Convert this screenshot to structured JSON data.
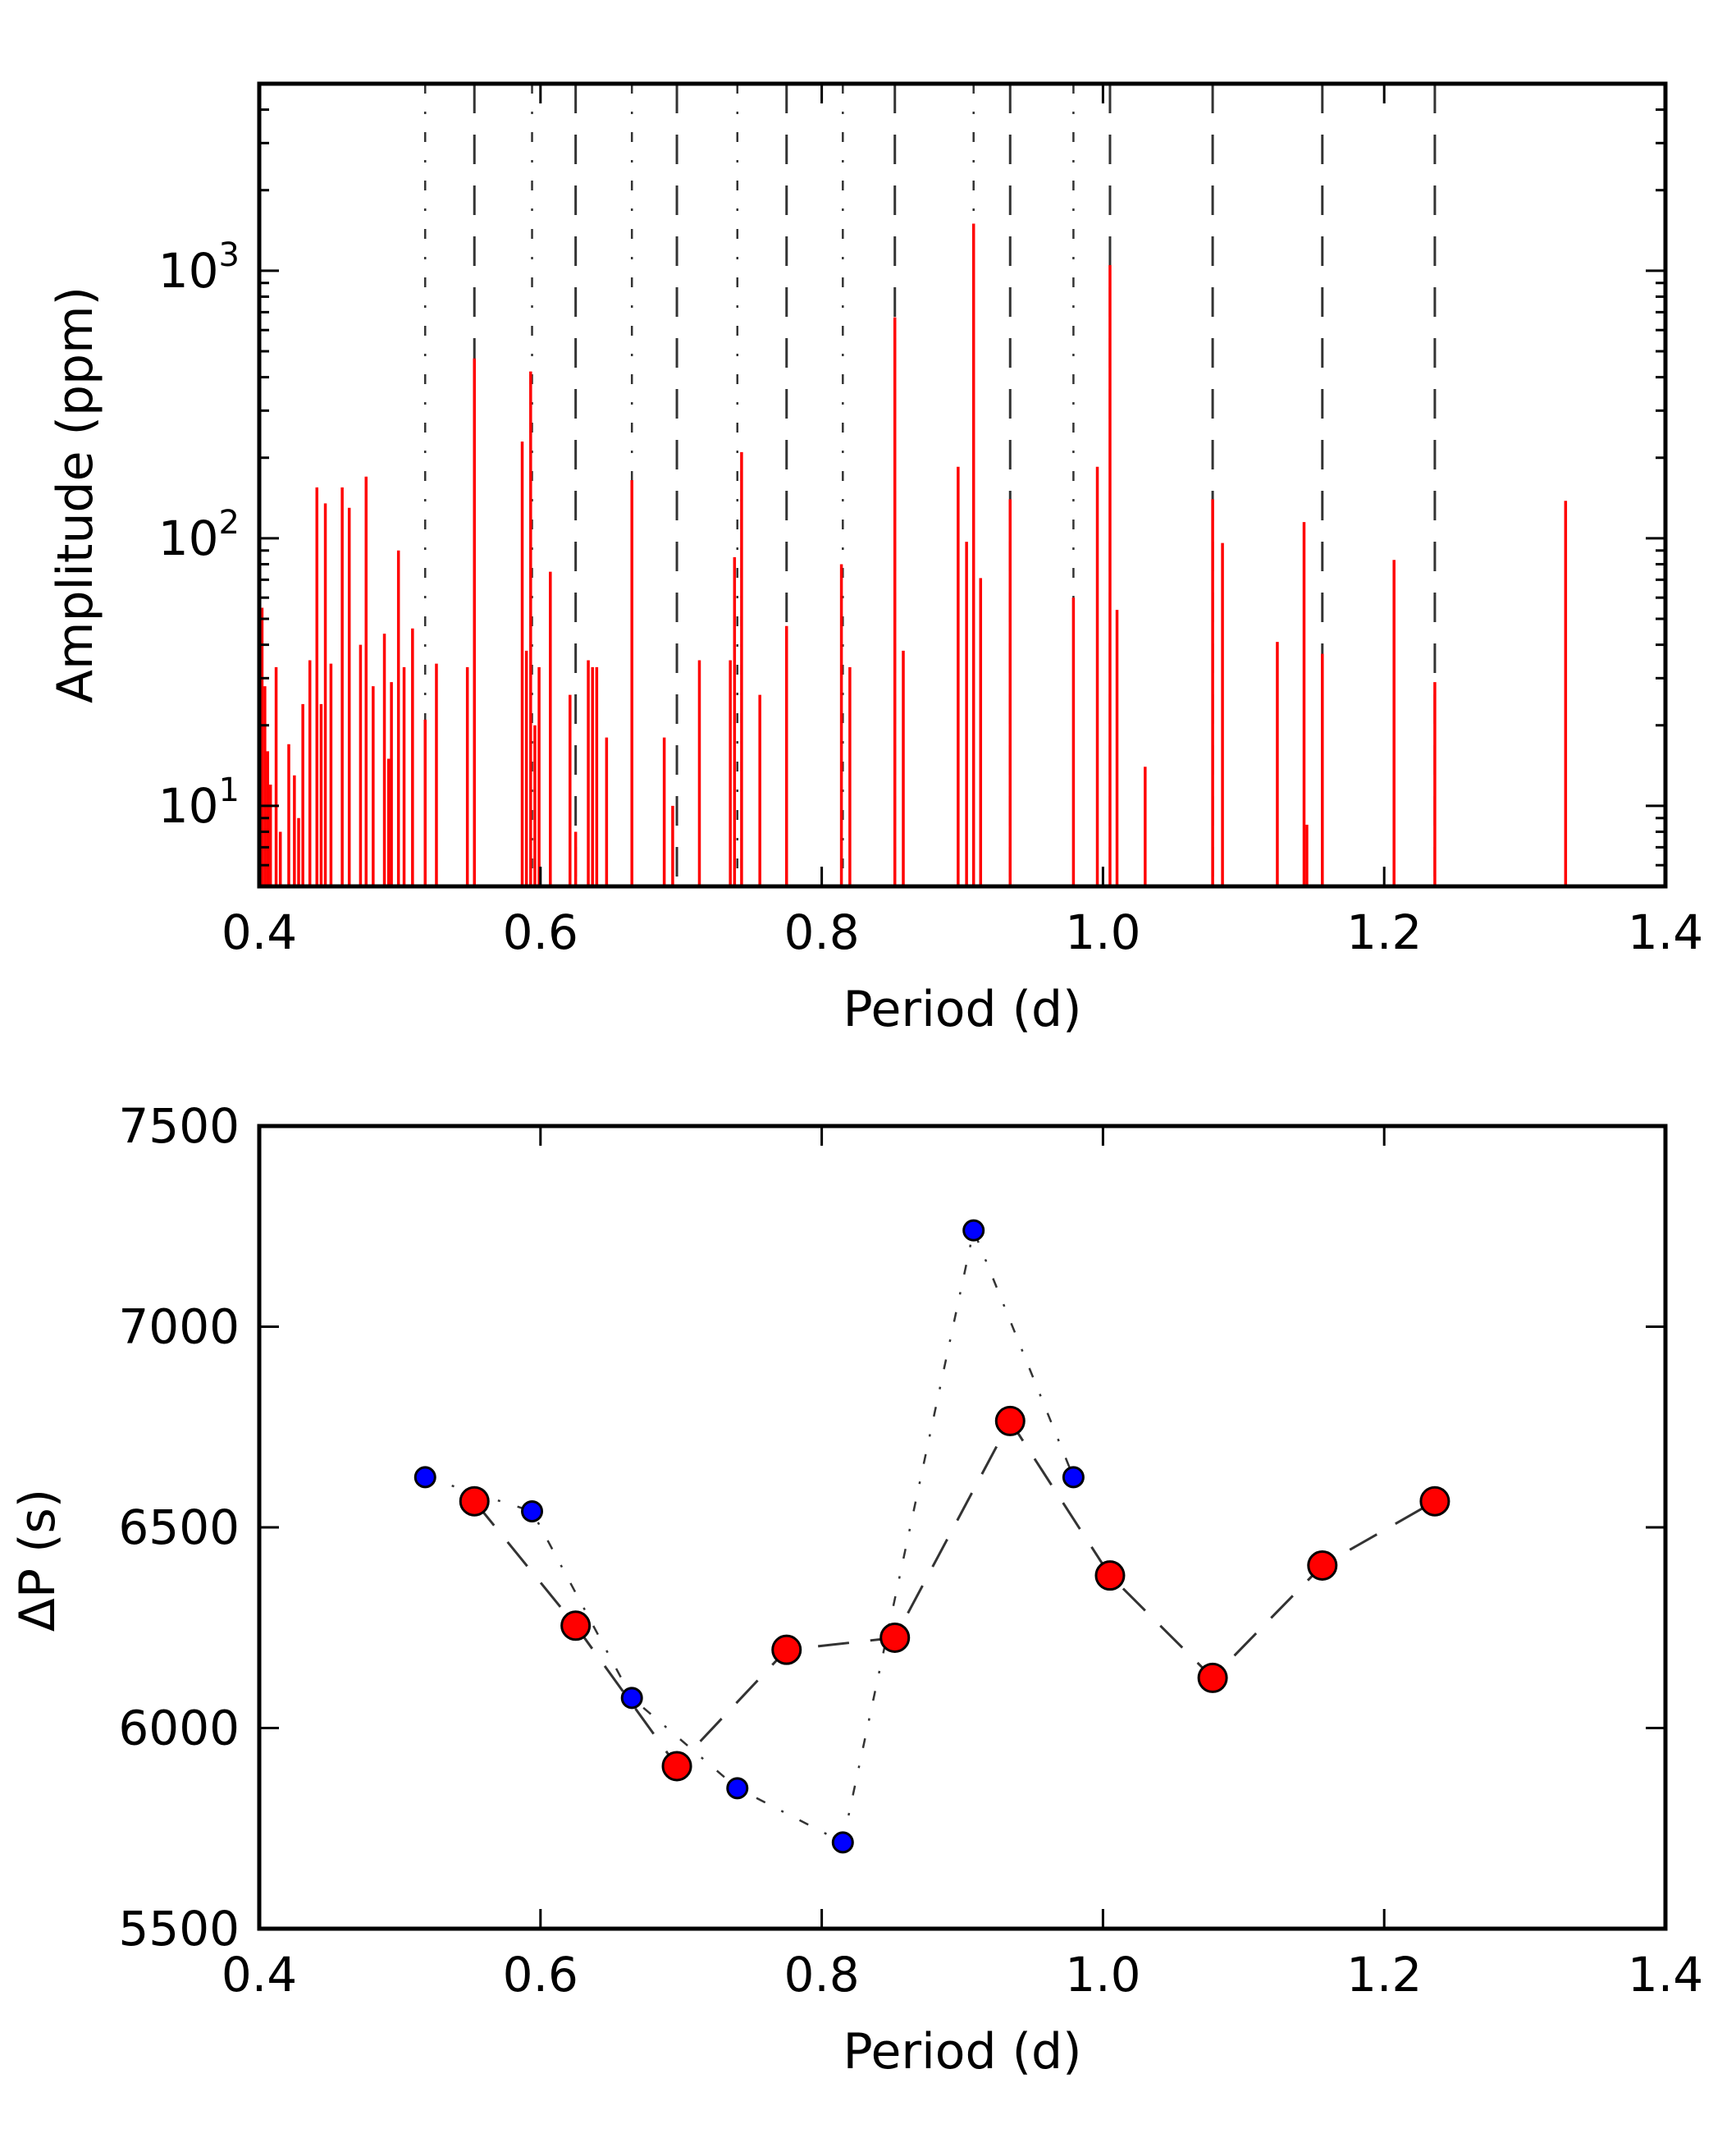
{
  "colors": {
    "spectrum": "#ff0000",
    "red_marker": "#ff0000",
    "blue_marker": "#0000ff",
    "guide_line": "#333333",
    "axes": "#000000"
  },
  "chart_data": [
    {
      "type": "bar",
      "subtype": "amplitude spectrum (vertical sticks)",
      "xlabel": "Period (d)",
      "ylabel": "Amplitude (ppm)",
      "xlim": [
        0.4,
        1.4
      ],
      "ylim": [
        5,
        5000
      ],
      "yscale": "log",
      "xticks": [
        "0.4",
        "0.6",
        "0.8",
        "1.0",
        "1.2",
        "1.4"
      ],
      "yticks": [
        {
          "value": 10,
          "base": "10",
          "exp": "1"
        },
        {
          "value": 100,
          "base": "10",
          "exp": "2"
        },
        {
          "value": 1000,
          "base": "10",
          "exp": "3"
        }
      ],
      "grid": false,
      "series": [
        {
          "values": [
            [
              0.402,
              55
            ],
            [
              0.404,
              28
            ],
            [
              0.406,
              16
            ],
            [
              0.408,
              12
            ],
            [
              0.412,
              33
            ],
            [
              0.415,
              8
            ],
            [
              0.421,
              17
            ],
            [
              0.425,
              13
            ],
            [
              0.428,
              9
            ],
            [
              0.431,
              24
            ],
            [
              0.436,
              35
            ],
            [
              0.441,
              155
            ],
            [
              0.444,
              24
            ],
            [
              0.447,
              135
            ],
            [
              0.451,
              34
            ],
            [
              0.459,
              155
            ],
            [
              0.464,
              130
            ],
            [
              0.472,
              40
            ],
            [
              0.476,
              170
            ],
            [
              0.481,
              28
            ],
            [
              0.489,
              44
            ],
            [
              0.492,
              15
            ],
            [
              0.494,
              29
            ],
            [
              0.499,
              90
            ],
            [
              0.503,
              33
            ],
            [
              0.509,
              46
            ],
            [
              0.518,
              21
            ],
            [
              0.526,
              34
            ],
            [
              0.548,
              33
            ],
            [
              0.553,
              470
            ],
            [
              0.587,
              230
            ],
            [
              0.59,
              38
            ],
            [
              0.593,
              420
            ],
            [
              0.596,
              20
            ],
            [
              0.599,
              33
            ],
            [
              0.607,
              75
            ],
            [
              0.621,
              26
            ],
            [
              0.625,
              8
            ],
            [
              0.634,
              35
            ],
            [
              0.637,
              33
            ],
            [
              0.64,
              33
            ],
            [
              0.647,
              18
            ],
            [
              0.665,
              165
            ],
            [
              0.688,
              18
            ],
            [
              0.694,
              10
            ],
            [
              0.713,
              35
            ],
            [
              0.735,
              35
            ],
            [
              0.738,
              85
            ],
            [
              0.743,
              210
            ],
            [
              0.756,
              26
            ],
            [
              0.775,
              47
            ],
            [
              0.814,
              80
            ],
            [
              0.82,
              33
            ],
            [
              0.852,
              670
            ],
            [
              0.858,
              38
            ],
            [
              0.897,
              185
            ],
            [
              0.903,
              97
            ],
            [
              0.908,
              1500
            ],
            [
              0.913,
              71
            ],
            [
              0.934,
              140
            ],
            [
              0.979,
              60
            ],
            [
              0.996,
              185
            ],
            [
              1.005,
              1050
            ],
            [
              1.01,
              54
            ],
            [
              1.03,
              14
            ],
            [
              1.078,
              140
            ],
            [
              1.085,
              96
            ],
            [
              1.124,
              41
            ],
            [
              1.143,
              115
            ],
            [
              1.145,
              8.5
            ],
            [
              1.156,
              37
            ],
            [
              1.207,
              83
            ],
            [
              1.236,
              29
            ],
            [
              1.329,
              138
            ]
          ]
        }
      ],
      "vlines_dashed": [
        0.553,
        0.625,
        0.697,
        0.775,
        0.852,
        0.934,
        1.005,
        1.078,
        1.156,
        1.236
      ],
      "vlines_dashdot": [
        0.518,
        0.594,
        0.665,
        0.74,
        0.815,
        0.908,
        0.979
      ]
    },
    {
      "type": "scatter",
      "subtype": "period spacing (markers with guide lines)",
      "xlabel": "Period (d)",
      "ylabel": "ΔP (s)",
      "xlim": [
        0.4,
        1.4
      ],
      "ylim": [
        5500,
        7500
      ],
      "xticks": [
        "0.4",
        "0.6",
        "0.8",
        "1.0",
        "1.2",
        "1.4"
      ],
      "yticks": [
        "5500",
        "6000",
        "6500",
        "7000",
        "7500"
      ],
      "grid": false,
      "series": [
        {
          "marker": "red circle",
          "line": "dashed",
          "x": [
            0.553,
            0.625,
            0.697,
            0.775,
            0.852,
            0.934,
            1.005,
            1.078,
            1.156,
            1.236
          ],
          "y": [
            6565,
            6255,
            5905,
            6195,
            6225,
            6765,
            6380,
            6125,
            6405,
            6565
          ]
        },
        {
          "marker": "blue circle",
          "line": "dash-dot",
          "x": [
            0.518,
            0.594,
            0.665,
            0.74,
            0.815,
            0.908,
            0.979
          ],
          "y": [
            6625,
            6540,
            6075,
            5850,
            5715,
            7240,
            6625
          ]
        }
      ]
    }
  ]
}
